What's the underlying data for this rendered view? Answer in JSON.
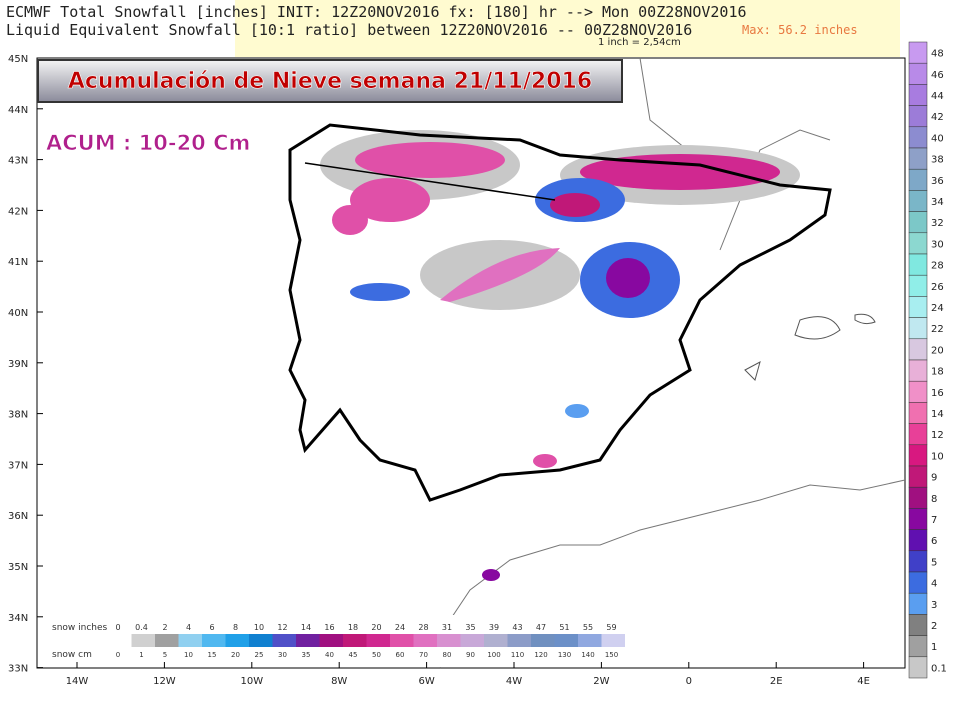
{
  "header": {
    "line1": "ECMWF Total Snowfall [inches] INIT: 12Z20NOV2016 fx: [180] hr --> Mon 00Z28NOV2016",
    "line2": "Liquid Equivalent Snowfall [10:1 ratio] between 12Z20NOV2016 -- 00Z28NOV2016",
    "note": "1 inch = 2,54cm",
    "max": "Max: 56.2 inches"
  },
  "title": "Acumulación de Nieve semana 21/11/2016",
  "annotation": "ACUM : 10-20 Cm",
  "map": {
    "lat_labels": [
      "45N",
      "44N",
      "43N",
      "42N",
      "41N",
      "40N",
      "39N",
      "38N",
      "37N",
      "36N",
      "35N",
      "34N",
      "33N"
    ],
    "lon_labels": [
      "14W",
      "12W",
      "10W",
      "8W",
      "6W",
      "4W",
      "2W",
      "0",
      "2E",
      "4E"
    ]
  },
  "colorbar": {
    "labels": [
      "48",
      "46",
      "44",
      "42",
      "40",
      "38",
      "36",
      "34",
      "32",
      "30",
      "28",
      "26",
      "24",
      "22",
      "20",
      "18",
      "16",
      "14",
      "12",
      "10",
      "9",
      "8",
      "7",
      "6",
      "5",
      "4",
      "3",
      "2",
      "1",
      "0.1"
    ],
    "colors": [
      "#c89af0",
      "#b88ae8",
      "#a87ce0",
      "#9c7cd8",
      "#8c8cd0",
      "#8ea0c8",
      "#7ea8c8",
      "#7ab6c8",
      "#7cc8c8",
      "#8cd8d0",
      "#80e8e0",
      "#90eee8",
      "#a8eef0",
      "#c0e8f0",
      "#d8c8e0",
      "#e8b0d8",
      "#f090c8",
      "#f070b0",
      "#e84098",
      "#d81880",
      "#c01878",
      "#a01080",
      "#8808a0",
      "#6010b0",
      "#4040c8",
      "#3c6ce0",
      "#5a9ef0",
      "#808080",
      "#a0a0a0",
      "#c8c8c8"
    ]
  },
  "legend": {
    "inches_label": "snow inches",
    "cm_label": "snow cm",
    "inches": [
      "0",
      "0.4",
      "2",
      "4",
      "6",
      "8",
      "10",
      "12",
      "14",
      "16",
      "18",
      "20",
      "24",
      "28",
      "31",
      "35",
      "39",
      "43",
      "47",
      "51",
      "55",
      "59"
    ],
    "cm": [
      "0",
      "1",
      "5",
      "10",
      "15",
      "20",
      "25",
      "30",
      "35",
      "40",
      "45",
      "50",
      "60",
      "70",
      "80",
      "90",
      "100",
      "110",
      "120",
      "130",
      "140",
      "150"
    ],
    "colors": [
      "#ffffff",
      "#d0d0d0",
      "#a0a0a0",
      "#90d0f0",
      "#50b8f0",
      "#20a0e8",
      "#1080d0",
      "#5050c8",
      "#7020a0",
      "#a01080",
      "#c01878",
      "#d02890",
      "#e050a8",
      "#e070c0",
      "#d890d0",
      "#c8a8d8",
      "#b0b0d0",
      "#8c9cc8",
      "#7090c0",
      "#6c90c8",
      "#90a8e0",
      "#d0d0f0"
    ]
  }
}
